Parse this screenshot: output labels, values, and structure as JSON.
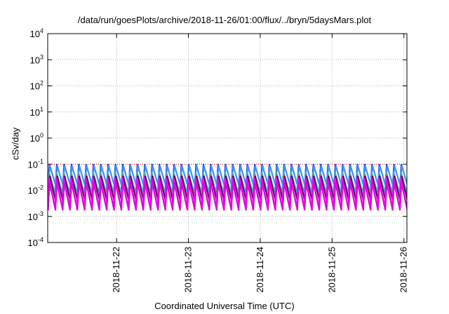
{
  "chart_data": {
    "type": "line",
    "title": "/data/run/goesPlots/archive/2018-11-26/01:00/flux/../bryn/5daysMars.plot",
    "xlabel": "Coordinated Universal Time (UTC)",
    "ylabel": "cSv/day",
    "yscale": "log",
    "ylim": [
      0.0001,
      10000
    ],
    "ytick_exponents": [
      -4,
      -3,
      -2,
      -1,
      0,
      1,
      2,
      3,
      4
    ],
    "xlim": [
      "2018-11-21T01:00",
      "2018-11-26T01:00"
    ],
    "xtick_labels": [
      "2018-11-22",
      "2018-11-23",
      "2018-11-24",
      "2018-11-25",
      "2018-11-26"
    ],
    "grid": true,
    "legend": "none",
    "cycles_per_day": 9.7,
    "series": [
      {
        "color": "#ff0000",
        "peak": 0.1,
        "trough": 0.1,
        "style": "dotted"
      },
      {
        "color": "#1030e0",
        "peak": 0.1,
        "trough": 0.016
      },
      {
        "color": "#4090ff",
        "peak": 0.09,
        "trough": 0.014
      },
      {
        "color": "#20c0b0",
        "peak": 0.05,
        "trough": 0.008
      },
      {
        "color": "#cc44aa",
        "peak": 0.04,
        "trough": 0.0045
      },
      {
        "color": "#600060",
        "peak": 0.035,
        "trough": 0.0035
      },
      {
        "color": "#ff00ff",
        "peak": 0.03,
        "trough": 0.0022
      },
      {
        "color": "#e000e0",
        "peak": 0.02,
        "trough": 0.0017
      }
    ]
  }
}
